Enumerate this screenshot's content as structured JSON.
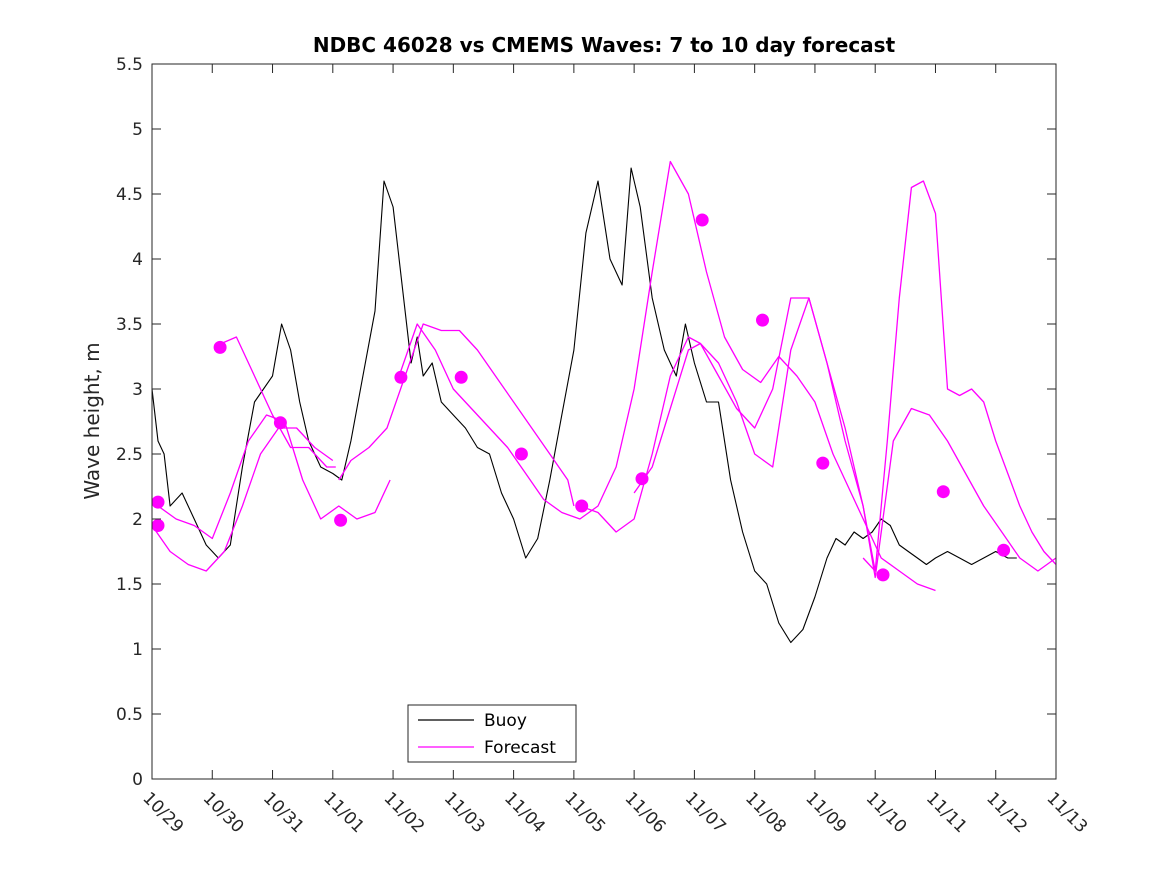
{
  "chart_data": {
    "type": "line",
    "title": "NDBC 46028 vs CMEMS Waves: 7 to 10 day forecast",
    "xlabel": "",
    "ylabel": "Wave height, m",
    "xlim": [
      0,
      15
    ],
    "ylim": [
      0,
      5.5
    ],
    "x_units": "days since 10/29",
    "xticks": [
      0,
      1,
      2,
      3,
      4,
      5,
      6,
      7,
      8,
      9,
      10,
      11,
      12,
      13,
      14,
      15
    ],
    "xtick_labels": [
      "10/29",
      "10/30",
      "10/31",
      "11/01",
      "11/02",
      "11/03",
      "11/04",
      "11/05",
      "11/06",
      "11/07",
      "11/08",
      "11/09",
      "11/10",
      "11/11",
      "11/12",
      "11/13"
    ],
    "yticks": [
      0,
      0.5,
      1,
      1.5,
      2,
      2.5,
      3,
      3.5,
      4,
      4.5,
      5,
      5.5
    ],
    "ytick_labels": [
      "0",
      "0.5",
      "1",
      "1.5",
      "2",
      "2.5",
      "3",
      "3.5",
      "4",
      "4.5",
      "5",
      "5.5"
    ],
    "grid": false,
    "legend": {
      "position": "bottom-center",
      "entries": [
        "Buoy",
        "Forecast"
      ]
    },
    "colors": {
      "buoy": "#000000",
      "forecast": "#ff00ff"
    },
    "buoy": {
      "name": "Buoy",
      "x": [
        0.0,
        0.1,
        0.2,
        0.3,
        0.5,
        0.7,
        0.9,
        1.0,
        1.1,
        1.3,
        1.5,
        1.7,
        1.85,
        2.0,
        2.15,
        2.3,
        2.45,
        2.6,
        2.8,
        3.0,
        3.15,
        3.3,
        3.5,
        3.7,
        3.85,
        4.0,
        4.1,
        4.2,
        4.3,
        4.4,
        4.5,
        4.65,
        4.8,
        5.0,
        5.2,
        5.4,
        5.6,
        5.8,
        6.0,
        6.2,
        6.4,
        6.6,
        6.8,
        7.0,
        7.2,
        7.4,
        7.6,
        7.8,
        7.95,
        8.1,
        8.3,
        8.5,
        8.7,
        8.85,
        9.0,
        9.2,
        9.4,
        9.6,
        9.8,
        10.0,
        10.2,
        10.4,
        10.6,
        10.8,
        11.0,
        11.2,
        11.35,
        11.5,
        11.65,
        11.8,
        11.95,
        12.1,
        12.25,
        12.4,
        12.55,
        12.7,
        12.85,
        13.0,
        13.2,
        13.4,
        13.6,
        13.8,
        14.0,
        14.2,
        14.35
      ],
      "y": [
        3.0,
        2.6,
        2.5,
        2.1,
        2.2,
        2.0,
        1.8,
        1.75,
        1.7,
        1.8,
        2.4,
        2.9,
        3.0,
        3.1,
        3.5,
        3.3,
        2.9,
        2.6,
        2.4,
        2.35,
        2.3,
        2.6,
        3.1,
        3.6,
        4.6,
        4.4,
        4.0,
        3.6,
        3.2,
        3.4,
        3.1,
        3.2,
        2.9,
        2.8,
        2.7,
        2.55,
        2.5,
        2.2,
        2.0,
        1.7,
        1.85,
        2.3,
        2.8,
        3.3,
        4.2,
        4.6,
        4.0,
        3.8,
        4.7,
        4.4,
        3.7,
        3.3,
        3.1,
        3.5,
        3.2,
        2.9,
        2.9,
        2.3,
        1.9,
        1.6,
        1.5,
        1.2,
        1.05,
        1.15,
        1.4,
        1.7,
        1.85,
        1.8,
        1.9,
        1.85,
        1.9,
        2.0,
        1.95,
        1.8,
        1.75,
        1.7,
        1.65,
        1.7,
        1.75,
        1.7,
        1.65,
        1.7,
        1.75,
        1.7,
        1.7
      ]
    },
    "forecast": {
      "name": "Forecast",
      "series": [
        {
          "x": [
            1.15,
            1.4,
            1.7,
            2.0,
            2.3,
            2.6,
            2.9,
            3.05
          ],
          "y": [
            3.35,
            3.4,
            3.1,
            2.8,
            2.55,
            2.55,
            2.4,
            2.4
          ]
        },
        {
          "x": [
            0.0,
            0.3,
            0.6,
            0.9,
            1.2,
            1.5,
            1.8,
            2.1,
            2.4,
            2.7,
            3.0
          ],
          "y": [
            1.95,
            1.75,
            1.65,
            1.6,
            1.75,
            2.1,
            2.5,
            2.7,
            2.7,
            2.55,
            2.45
          ]
        },
        {
          "x": [
            0.1,
            0.4,
            0.7,
            1.0,
            1.3,
            1.6,
            1.9,
            2.2,
            2.5,
            2.8,
            3.1,
            3.4,
            3.7,
            3.95
          ],
          "y": [
            2.1,
            2.0,
            1.95,
            1.85,
            2.2,
            2.6,
            2.8,
            2.75,
            2.3,
            2.0,
            2.1,
            2.0,
            2.05,
            2.3
          ]
        },
        {
          "x": [
            3.1,
            3.3,
            3.6,
            3.9,
            4.2,
            4.5,
            4.8,
            5.1,
            5.4,
            5.7,
            6.0,
            6.3,
            6.6,
            6.9,
            7.0
          ],
          "y": [
            2.3,
            2.45,
            2.55,
            2.7,
            3.1,
            3.5,
            3.45,
            3.45,
            3.3,
            3.1,
            2.9,
            2.7,
            2.5,
            2.3,
            2.1
          ]
        },
        {
          "x": [
            4.1,
            4.4,
            4.7,
            5.0,
            5.3,
            5.6,
            5.9,
            6.2,
            6.5,
            6.8,
            7.1,
            7.4,
            7.7,
            8.0,
            8.3,
            8.6,
            8.9,
            9.2,
            9.5,
            9.8,
            10.1,
            10.4,
            10.7,
            11.0,
            11.3,
            11.6,
            11.9,
            12.1,
            12.4,
            12.7,
            13.0
          ],
          "y": [
            3.1,
            3.5,
            3.3,
            3.0,
            2.85,
            2.7,
            2.55,
            2.35,
            2.15,
            2.05,
            2.0,
            2.1,
            2.4,
            3.0,
            3.9,
            4.75,
            4.5,
            3.9,
            3.4,
            3.15,
            3.05,
            3.25,
            3.1,
            2.9,
            2.5,
            2.2,
            1.9,
            1.7,
            1.6,
            1.5,
            1.45
          ]
        },
        {
          "x": [
            7.1,
            7.4,
            7.7,
            8.0,
            8.3,
            8.6,
            8.9,
            9.1,
            9.4,
            9.7,
            10.0,
            10.3,
            10.6,
            10.9,
            11.2,
            11.5,
            11.8,
            12.0
          ],
          "y": [
            2.1,
            2.05,
            1.9,
            2.0,
            2.5,
            3.1,
            3.4,
            3.35,
            3.1,
            2.85,
            2.7,
            3.0,
            3.7,
            3.7,
            3.2,
            2.6,
            2.1,
            1.6
          ]
        },
        {
          "x": [
            8.0,
            8.3,
            8.6,
            8.9,
            9.1,
            9.4,
            9.7,
            10.0,
            10.3,
            10.6,
            10.9,
            11.2,
            11.5,
            11.8,
            12.0,
            12.3,
            12.6,
            12.9,
            13.2,
            13.5,
            13.8,
            14.1,
            14.4,
            14.7,
            15.0
          ],
          "y": [
            2.2,
            2.4,
            2.85,
            3.3,
            3.35,
            3.2,
            2.9,
            2.5,
            2.4,
            3.3,
            3.7,
            3.2,
            2.7,
            2.1,
            1.55,
            2.6,
            2.85,
            2.8,
            2.6,
            2.35,
            2.1,
            1.9,
            1.7,
            1.6,
            1.7
          ]
        },
        {
          "x": [
            11.8,
            12.0,
            12.2,
            12.4,
            12.6,
            12.8,
            13.0,
            13.2,
            13.4,
            13.6,
            13.8,
            14.0,
            14.2,
            14.4,
            14.6,
            14.8,
            15.0
          ],
          "y": [
            1.7,
            1.6,
            2.6,
            3.7,
            4.55,
            4.6,
            4.35,
            3.0,
            2.95,
            3.0,
            2.9,
            2.6,
            2.35,
            2.1,
            1.9,
            1.75,
            1.65
          ]
        }
      ]
    },
    "forecast_markers": {
      "x": [
        0.1,
        0.1,
        1.13,
        2.13,
        3.13,
        4.13,
        5.13,
        6.13,
        7.13,
        8.13,
        9.13,
        10.13,
        11.13,
        12.13,
        13.13,
        14.13
      ],
      "y": [
        2.13,
        1.95,
        3.32,
        2.74,
        1.99,
        3.09,
        3.09,
        2.5,
        2.1,
        2.31,
        4.3,
        3.53,
        2.43,
        1.57,
        2.21,
        1.76
      ]
    }
  }
}
